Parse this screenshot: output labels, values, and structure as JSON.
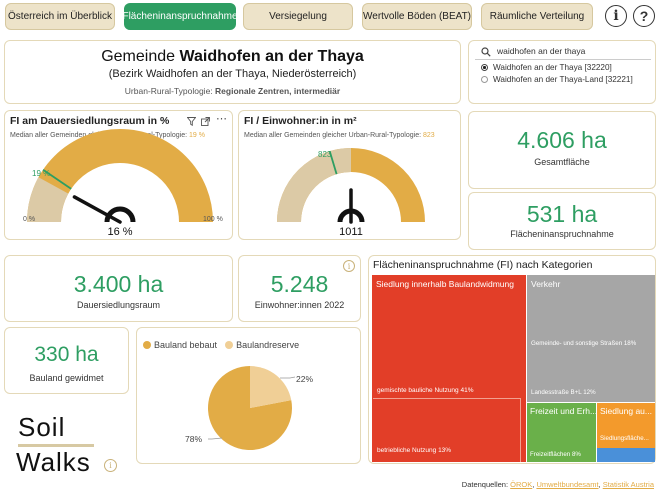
{
  "tabs": [
    "Österreich im Überblick",
    "Flächeninanspruchnahme",
    "Versiegelung",
    "Wertvolle Böden (BEAT)",
    "Räumliche Verteilung"
  ],
  "active_tab": 1,
  "help_buttons": {
    "info": "i",
    "help": "?"
  },
  "header": {
    "prefix": "Gemeinde",
    "name": "Waidhofen an der Thaya",
    "district": "(Bezirk Waidhofen an der Thaya, Niederösterreich)",
    "typology_label": "Urban-Rural-Typologie:",
    "typology_value": "Regionale Zentren, intermediär"
  },
  "search": {
    "value": "waidhofen an der thaya",
    "options": [
      {
        "label": "Waidhofen an der Thaya [32220]",
        "selected": true
      },
      {
        "label": "Waidhofen an der Thaya-Land [32221]",
        "selected": false
      }
    ]
  },
  "gauge1": {
    "title": "FI am Dauersiedlungsraum in %",
    "subtitle": "Median aller Gemeinden gleicher Urban-Rural-Typologie:",
    "median": "19 %",
    "median_label": "19 %",
    "min_label": "0 %",
    "max_label": "100 %",
    "value_label": "16 %",
    "value": 16,
    "min": 0,
    "max": 100,
    "median_value": 19
  },
  "gauge2": {
    "title": "FI / Einwohner:in in m²",
    "subtitle": "Median aller Gemeinden gleicher Urban-Rural-Typologie:",
    "median": "823",
    "median_label": "823",
    "value_label": "1011",
    "value": 1011,
    "min": 0,
    "max": 2022,
    "median_value": 823
  },
  "kpis": {
    "gesamtflaeche": {
      "value": "4.606 ha",
      "label": "Gesamtfläche"
    },
    "fi": {
      "value": "531 ha",
      "label": "Flächeninanspruchnahme"
    },
    "dsr": {
      "value": "3.400 ha",
      "label": "Dauersiedlungsraum"
    },
    "einwohner": {
      "value": "5.248",
      "label": "Einwohner:innen 2022"
    },
    "bauland": {
      "value": "330 ha",
      "label": "Bauland gewidmet"
    }
  },
  "treemap": {
    "title": "Flächeninanspruchnahme (FI) nach Kategorien",
    "labels": {
      "siedlung_innerhalb": "Siedlung innerhalb Baulandwidmung",
      "gemischt": "gemischte bauliche Nutzung 41%",
      "betrieblich": "betriebliche Nutzung 13%",
      "verkehr": "Verkehr",
      "strassen": "Gemeinde- und sonstige Straßen 18%",
      "landesstrasse": "Landesstraße B+L 12%",
      "freizeit": "Freizeit und Erh...",
      "freizeitflaechen": "Freizeitflächen 8%",
      "siedlung_ausserhalb": "Siedlung au...",
      "siedlungsflaeche": "Siedlungsfläche..."
    }
  },
  "pie": {
    "legend": [
      {
        "label": "Bauland bebaut",
        "color": "#e2ac46"
      },
      {
        "label": "Baulandreserve",
        "color": "#f0cf96"
      }
    ],
    "labels": {
      "small": "22%",
      "large": "78%"
    }
  },
  "chart_data": {
    "type": "pie",
    "categories": [
      "Bauland bebaut",
      "Baulandreserve"
    ],
    "values": [
      78,
      22
    ]
  },
  "logo": {
    "line1": "Soil",
    "line2": "Walks"
  },
  "footer": {
    "label": "Datenquellen:",
    "sources": [
      "ÖROK",
      "Umweltbundesamt",
      "Statistik Austria"
    ]
  }
}
